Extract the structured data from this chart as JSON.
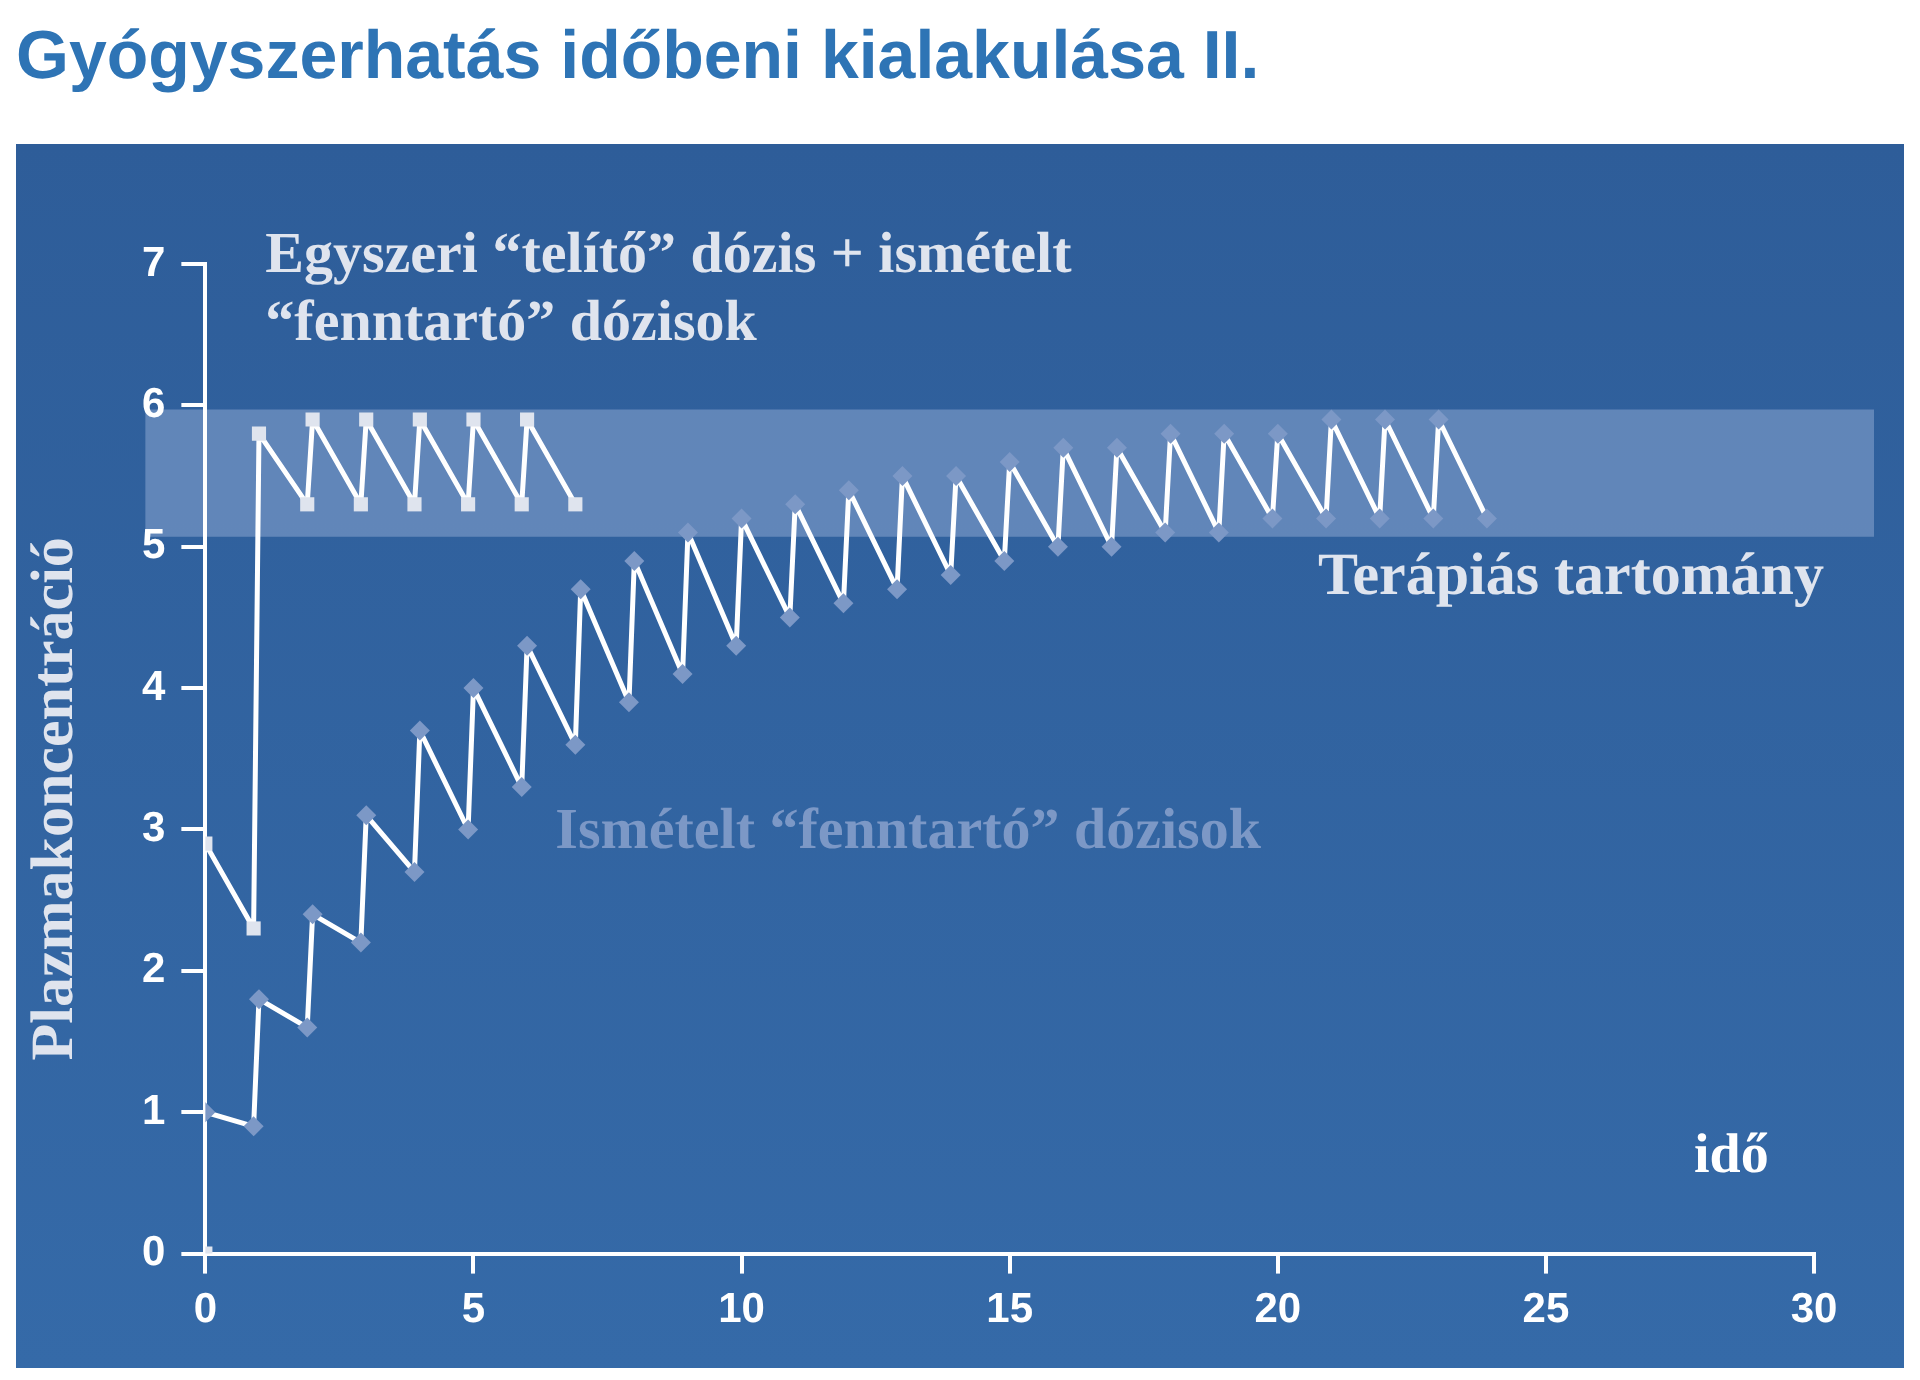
{
  "chart_data": {
    "type": "line",
    "title": "Gyógyszerhatás időbeni kialakulása II.",
    "xlabel": "idő",
    "ylabel": "Plazmakoncentráció",
    "xlim": [
      0,
      30
    ],
    "xticks": [
      0,
      5,
      10,
      15,
      20,
      25,
      30
    ],
    "ylim": [
      0,
      7
    ],
    "yticks": [
      0,
      1,
      2,
      3,
      4,
      5,
      6,
      7
    ],
    "grid": false,
    "legend": false,
    "bands": [
      {
        "axis": "y",
        "from": 5.07,
        "to": 5.97,
        "label": "Terápiás tartomány",
        "color": "#8aa6d0"
      }
    ],
    "series": [
      {
        "name": "Egyszeri “telítő” dózis + ismételt “fenntartó” dózisok",
        "color": "#dfe4ee",
        "marker": "square",
        "x": [
          0,
          0.9,
          1,
          1.9,
          2,
          2.9,
          3,
          3.9,
          4,
          4.9,
          5,
          5.9,
          6,
          6.9
        ],
        "values": [
          2.9,
          2.3,
          5.8,
          5.3,
          5.9,
          5.3,
          5.9,
          5.3,
          5.9,
          5.3,
          5.9,
          5.3,
          5.9,
          5.3
        ]
      },
      {
        "name": "Ismételt “fenntartó” dózisok",
        "color": "#7c98c6",
        "marker": "diamond",
        "x": [
          0,
          0.9,
          1,
          1.9,
          2,
          2.9,
          3,
          3.9,
          4,
          4.9,
          5,
          5.9,
          6,
          6.9,
          7,
          7.9,
          8,
          8.9,
          9,
          9.9,
          10,
          10.9,
          11,
          11.9,
          12,
          12.9,
          13,
          13.9,
          14,
          14.9,
          15,
          15.9,
          16,
          16.9,
          17,
          17.9,
          18,
          18.9,
          19,
          19.9,
          20,
          20.9,
          21,
          21.9,
          22,
          22.9,
          23,
          23.9
        ],
        "values": [
          1.0,
          0.9,
          1.8,
          1.6,
          2.4,
          2.2,
          3.1,
          2.7,
          3.7,
          3.0,
          4.0,
          3.3,
          4.3,
          3.6,
          4.7,
          3.9,
          4.9,
          4.1,
          5.1,
          4.3,
          5.2,
          4.5,
          5.3,
          4.6,
          5.4,
          4.7,
          5.5,
          4.8,
          5.5,
          4.9,
          5.6,
          5.0,
          5.7,
          5.0,
          5.7,
          5.1,
          5.8,
          5.1,
          5.8,
          5.2,
          5.8,
          5.2,
          5.9,
          5.2,
          5.9,
          5.2,
          5.9,
          5.2
        ]
      },
      {
        "type": "scatter",
        "color": "#dfe4ee",
        "marker": "square",
        "x": [
          0
        ],
        "values": [
          0
        ]
      }
    ]
  }
}
